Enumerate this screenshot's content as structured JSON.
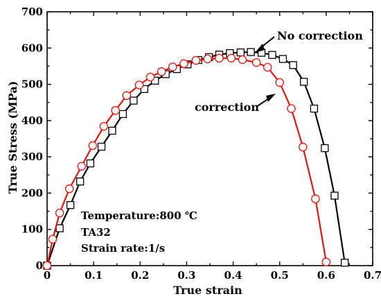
{
  "chart_data": {
    "type": "line",
    "title": "",
    "xlabel": "True strain",
    "ylabel": "True Stress (MPa)",
    "xlim": [
      0,
      0.7
    ],
    "ylim": [
      0,
      700
    ],
    "x_ticks": [
      "0",
      "0.1",
      "0.2",
      "0.3",
      "0.4",
      "0.5",
      "0.6",
      "0.7"
    ],
    "y_ticks": [
      "0",
      "100",
      "200",
      "300",
      "400",
      "500",
      "600",
      "700"
    ],
    "grid": false,
    "series": [
      {
        "name": "No correction",
        "color": "#000000",
        "marker": "square",
        "x": [
          0.0,
          0.027,
          0.05,
          0.071,
          0.093,
          0.117,
          0.14,
          0.163,
          0.186,
          0.209,
          0.232,
          0.255,
          0.279,
          0.302,
          0.325,
          0.348,
          0.37,
          0.393,
          0.416,
          0.438,
          0.461,
          0.484,
          0.507,
          0.529,
          0.552,
          0.574,
          0.597,
          0.618,
          0.64
        ],
        "y": [
          0,
          103,
          167,
          232,
          282,
          328,
          372,
          418,
          455,
          487,
          510,
          528,
          542,
          555,
          567,
          575,
          582,
          586,
          588,
          589,
          587,
          581,
          570,
          553,
          507,
          433,
          324,
          193,
          8
        ]
      },
      {
        "name": "correction",
        "color": "#e8120c",
        "marker": "circle",
        "x": [
          0.0,
          0.012,
          0.027,
          0.048,
          0.074,
          0.098,
          0.122,
          0.147,
          0.171,
          0.198,
          0.222,
          0.246,
          0.27,
          0.294,
          0.32,
          0.345,
          0.37,
          0.396,
          0.42,
          0.45,
          0.474,
          0.5,
          0.525,
          0.55,
          0.577,
          0.6
        ],
        "y": [
          0,
          73,
          145,
          212,
          274,
          331,
          384,
          428,
          469,
          498,
          520,
          535,
          548,
          557,
          566,
          570,
          572,
          572,
          568,
          560,
          547,
          505,
          433,
          327,
          184,
          10
        ]
      }
    ],
    "annotations": {
      "no_correction": "No correction",
      "correction": "correction"
    },
    "info_text": {
      "line1": "Temperature:800 ℃",
      "line2": "TA32",
      "line3": "Strain rate:1/s"
    }
  }
}
